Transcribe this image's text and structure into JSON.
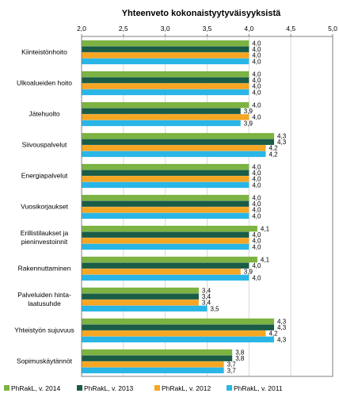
{
  "chart_data": {
    "type": "bar",
    "orientation": "horizontal",
    "title": "Yhteenveto kokonaistyytyväisyyksistä",
    "xlim": [
      2.0,
      5.0
    ],
    "ticks": [
      "2,0",
      "2,5",
      "3,0",
      "3,5",
      "4,0",
      "4,5",
      "5,0"
    ],
    "tick_values": [
      2.0,
      2.5,
      3.0,
      3.5,
      4.0,
      4.5,
      5.0
    ],
    "grid": true,
    "legend_position": "bottom",
    "categories": [
      [
        "Kiinteistönhoito"
      ],
      [
        "Ulkoalueiden hoito"
      ],
      [
        "Jätehuolto"
      ],
      [
        "Siivouspalvelut"
      ],
      [
        "Energiapalvelut"
      ],
      [
        "Vuosikorjaukset"
      ],
      [
        "Erillistilaukset ja",
        "pieninvestoinnit"
      ],
      [
        "Rakennuttaminen"
      ],
      [
        "Palveluiden hinta-",
        "laatusuhde"
      ],
      [
        "Yhteistyön sujuvuus"
      ],
      [
        "Sopimuskäytännöt"
      ]
    ],
    "series": [
      {
        "name": "PhRakL, v. 2014",
        "color": "#7cb342",
        "values": [
          4.0,
          4.0,
          4.0,
          4.3,
          4.0,
          4.0,
          4.1,
          4.1,
          3.4,
          4.3,
          3.8
        ],
        "labels": [
          "4,0",
          "4,0",
          "4,0",
          "4,3",
          "4,0",
          "4,0",
          "4,1",
          "4,1",
          "3,4",
          "4,3",
          "3,8"
        ]
      },
      {
        "name": "PhRakL, v. 2013",
        "color": "#1a5c45",
        "values": [
          4.0,
          4.0,
          3.9,
          4.3,
          4.0,
          4.0,
          4.0,
          4.0,
          3.4,
          4.3,
          3.8
        ],
        "labels": [
          "4,0",
          "4,0",
          "3,9",
          "4,3",
          "4,0",
          "4,0",
          "4,0",
          "4,0",
          "3,4",
          "4,3",
          "3,8"
        ]
      },
      {
        "name": "PhRakL, v. 2012",
        "color": "#f5a623",
        "values": [
          4.0,
          4.0,
          4.0,
          4.2,
          4.0,
          4.0,
          4.0,
          3.9,
          3.4,
          4.2,
          3.7
        ],
        "labels": [
          "4,0",
          "4,0",
          "4,0",
          "4,2",
          "4,0",
          "4,0",
          "4,0",
          "3,9",
          "3,4",
          "4,2",
          "3,7"
        ]
      },
      {
        "name": "PhRakL, v. 2011",
        "color": "#29b6e6",
        "values": [
          4.0,
          4.0,
          3.9,
          4.2,
          4.0,
          4.0,
          4.0,
          4.0,
          3.5,
          4.3,
          3.7
        ],
        "labels": [
          "4,0",
          "4,0",
          "3,9",
          "4,2",
          "4,0",
          "4,0",
          "4,0",
          "4,0",
          "3,5",
          "4,3",
          "3,7"
        ]
      }
    ],
    "plot_border_color": "#7f7f7f",
    "grid_color": "#d9d9d9"
  }
}
